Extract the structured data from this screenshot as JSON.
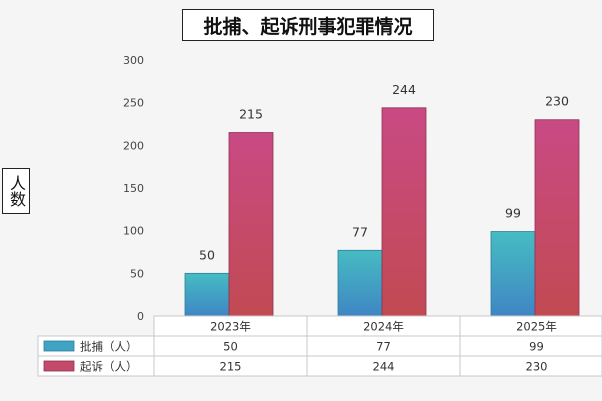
{
  "chart_data": {
    "type": "bar",
    "title": "批捕、起诉刑事犯罪情况",
    "ylabel": "人数",
    "xlabel": "",
    "ylim": [
      0,
      300
    ],
    "yticks": [
      "0",
      "50",
      "100",
      "150",
      "200",
      "250",
      "300"
    ],
    "categories": [
      "2023年",
      "2024年",
      "2025年"
    ],
    "series": [
      {
        "name": "批捕（人）",
        "values": [
          50,
          77,
          99
        ],
        "color": "#3aa8c4"
      },
      {
        "name": "起诉（人）",
        "values": [
          215,
          244,
          230
        ],
        "color": "#c2456e"
      }
    ],
    "grid": false,
    "legend": "data-table-bottom"
  }
}
